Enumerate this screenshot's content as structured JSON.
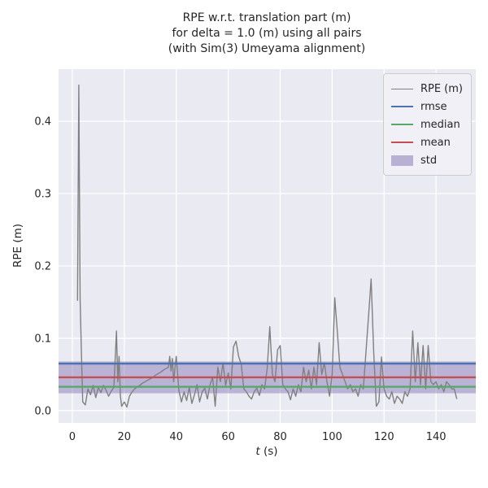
{
  "title": {
    "line1": "RPE w.r.t. translation part (m)",
    "line2": "for delta = 1.0 (m) using all pairs",
    "line3": "(with Sim(3) Umeyama alignment)"
  },
  "axes": {
    "xlabel_var": "t",
    "xlabel_unit": " (s)",
    "ylabel": "RPE (m)"
  },
  "legend": {
    "items": [
      {
        "label": "RPE (m)",
        "type": "line",
        "color": "#808080"
      },
      {
        "label": "rmse",
        "type": "line",
        "color": "#4c72b0"
      },
      {
        "label": "median",
        "type": "line",
        "color": "#55a868"
      },
      {
        "label": "mean",
        "type": "line",
        "color": "#c44e52"
      },
      {
        "label": "std",
        "type": "patch",
        "color": "rgba(129,114,178,0.5)"
      }
    ]
  },
  "colors": {
    "figure_bg": "#ffffff",
    "axes_bg": "#eaeaf2",
    "grid": "#ffffff",
    "rpe_line": "#808080",
    "rmse_line": "#4c72b0",
    "median_line": "#55a868",
    "mean_line": "#c44e52",
    "std_fill": "rgba(129,114,178,0.45)",
    "text": "#262626"
  },
  "chart_data": {
    "type": "line",
    "title": "RPE w.r.t. translation part (m) for delta = 1.0 (m) using all pairs (with Sim(3) Umeyama alignment)",
    "xlabel": "t (s)",
    "ylabel": "RPE (m)",
    "xlim": [
      -5.3,
      155.3
    ],
    "ylim": [
      -0.017,
      0.472
    ],
    "xticks": [
      0,
      20,
      40,
      60,
      80,
      100,
      120,
      140
    ],
    "xtick_labels": [
      "0",
      "20",
      "40",
      "60",
      "80",
      "100",
      "120",
      "140"
    ],
    "yticks": [
      0.0,
      0.1,
      0.2,
      0.3,
      0.4
    ],
    "ytick_labels": [
      "0.0",
      "0.1",
      "0.2",
      "0.3",
      "0.4"
    ],
    "grid": true,
    "legend_position": "upper right",
    "stats": {
      "rmse": 0.065,
      "median": 0.033,
      "mean": 0.046,
      "std": 0.022,
      "std_band": [
        0.024,
        0.068
      ]
    },
    "series": [
      {
        "name": "RPE (m)",
        "points": [
          [
            2,
            0.152
          ],
          [
            2.5,
            0.45
          ],
          [
            3,
            0.155
          ],
          [
            3.5,
            0.08
          ],
          [
            4,
            0.012
          ],
          [
            5,
            0.008
          ],
          [
            6,
            0.03
          ],
          [
            7,
            0.022
          ],
          [
            8,
            0.035
          ],
          [
            9,
            0.018
          ],
          [
            10,
            0.032
          ],
          [
            11,
            0.025
          ],
          [
            12,
            0.035
          ],
          [
            13,
            0.028
          ],
          [
            14,
            0.02
          ],
          [
            15,
            0.027
          ],
          [
            16,
            0.032
          ],
          [
            17,
            0.11
          ],
          [
            17.5,
            0.04
          ],
          [
            18,
            0.075
          ],
          [
            18.5,
            0.02
          ],
          [
            19,
            0.006
          ],
          [
            20,
            0.012
          ],
          [
            21,
            0.005
          ],
          [
            22,
            0.02
          ],
          [
            23,
            0.026
          ],
          [
            24,
            0.03
          ],
          [
            25,
            0.033
          ],
          [
            26,
            0.035
          ],
          [
            27,
            0.038
          ],
          [
            28,
            0.04
          ],
          [
            29,
            0.042
          ],
          [
            30,
            0.044
          ],
          [
            31,
            0.046
          ],
          [
            32,
            0.049
          ],
          [
            33,
            0.051
          ],
          [
            34,
            0.053
          ],
          [
            35,
            0.056
          ],
          [
            36,
            0.058
          ],
          [
            37,
            0.06
          ],
          [
            37.5,
            0.075
          ],
          [
            38,
            0.055
          ],
          [
            38.5,
            0.072
          ],
          [
            39,
            0.04
          ],
          [
            40,
            0.075
          ],
          [
            41,
            0.028
          ],
          [
            42,
            0.012
          ],
          [
            43,
            0.026
          ],
          [
            44,
            0.014
          ],
          [
            45,
            0.032
          ],
          [
            46,
            0.01
          ],
          [
            47,
            0.022
          ],
          [
            48,
            0.036
          ],
          [
            49,
            0.012
          ],
          [
            50,
            0.026
          ],
          [
            51,
            0.031
          ],
          [
            52,
            0.016
          ],
          [
            53,
            0.036
          ],
          [
            54,
            0.046
          ],
          [
            55,
            0.006
          ],
          [
            56,
            0.06
          ],
          [
            57,
            0.04
          ],
          [
            58,
            0.066
          ],
          [
            59,
            0.035
          ],
          [
            60,
            0.052
          ],
          [
            61,
            0.03
          ],
          [
            62,
            0.088
          ],
          [
            63,
            0.096
          ],
          [
            64,
            0.075
          ],
          [
            65,
            0.064
          ],
          [
            66,
            0.03
          ],
          [
            67,
            0.026
          ],
          [
            68,
            0.02
          ],
          [
            69,
            0.016
          ],
          [
            70,
            0.026
          ],
          [
            71,
            0.031
          ],
          [
            72,
            0.021
          ],
          [
            73,
            0.036
          ],
          [
            74,
            0.03
          ],
          [
            75,
            0.058
          ],
          [
            76,
            0.116
          ],
          [
            77,
            0.05
          ],
          [
            78,
            0.04
          ],
          [
            79,
            0.084
          ],
          [
            80,
            0.09
          ],
          [
            81,
            0.036
          ],
          [
            82,
            0.03
          ],
          [
            83,
            0.026
          ],
          [
            84,
            0.015
          ],
          [
            85,
            0.03
          ],
          [
            86,
            0.02
          ],
          [
            87,
            0.036
          ],
          [
            88,
            0.026
          ],
          [
            89,
            0.06
          ],
          [
            90,
            0.04
          ],
          [
            91,
            0.056
          ],
          [
            92,
            0.03
          ],
          [
            93,
            0.06
          ],
          [
            94,
            0.036
          ],
          [
            95,
            0.094
          ],
          [
            96,
            0.05
          ],
          [
            97,
            0.066
          ],
          [
            98,
            0.04
          ],
          [
            99,
            0.02
          ],
          [
            100,
            0.05
          ],
          [
            101,
            0.156
          ],
          [
            102,
            0.11
          ],
          [
            103,
            0.06
          ],
          [
            104,
            0.05
          ],
          [
            105,
            0.04
          ],
          [
            106,
            0.03
          ],
          [
            107,
            0.036
          ],
          [
            108,
            0.026
          ],
          [
            109,
            0.03
          ],
          [
            110,
            0.02
          ],
          [
            111,
            0.036
          ],
          [
            112,
            0.03
          ],
          [
            113,
            0.08
          ],
          [
            114,
            0.13
          ],
          [
            115,
            0.182
          ],
          [
            116,
            0.08
          ],
          [
            117,
            0.006
          ],
          [
            118,
            0.012
          ],
          [
            119,
            0.074
          ],
          [
            120,
            0.03
          ],
          [
            121,
            0.02
          ],
          [
            122,
            0.016
          ],
          [
            123,
            0.026
          ],
          [
            124,
            0.01
          ],
          [
            125,
            0.02
          ],
          [
            126,
            0.016
          ],
          [
            127,
            0.01
          ],
          [
            128,
            0.026
          ],
          [
            129,
            0.02
          ],
          [
            130,
            0.03
          ],
          [
            131,
            0.11
          ],
          [
            132,
            0.04
          ],
          [
            133,
            0.094
          ],
          [
            134,
            0.036
          ],
          [
            135,
            0.09
          ],
          [
            136,
            0.03
          ],
          [
            137,
            0.09
          ],
          [
            138,
            0.04
          ],
          [
            139,
            0.036
          ],
          [
            140,
            0.04
          ],
          [
            141,
            0.03
          ],
          [
            142,
            0.036
          ],
          [
            143,
            0.026
          ],
          [
            144,
            0.04
          ],
          [
            145,
            0.036
          ],
          [
            146,
            0.03
          ],
          [
            147,
            0.03
          ],
          [
            148,
            0.016
          ]
        ]
      }
    ]
  }
}
